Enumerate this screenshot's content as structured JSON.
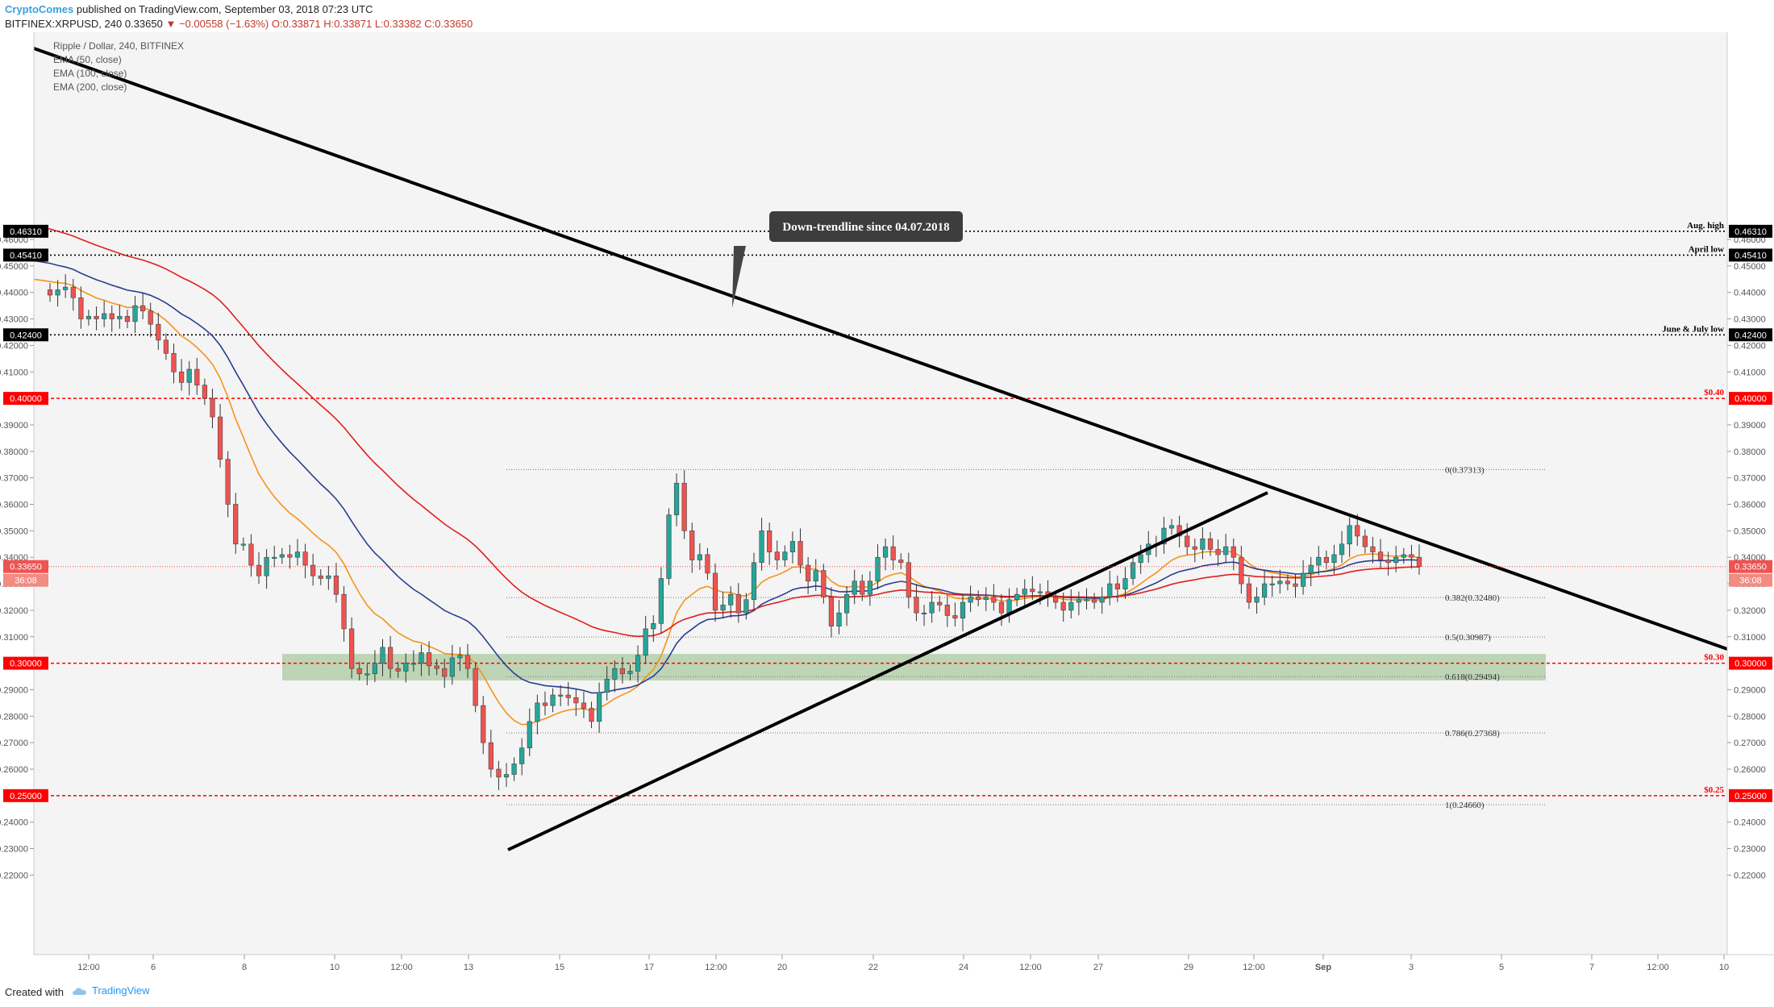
{
  "header": {
    "brand": "CryptoComes",
    "published": "published on TradingView.com, September 03, 2018 07:23 UTC",
    "symbol": "BITFINEX:XRPUSD, 240",
    "last": "0.33650",
    "change": "▼ −0.00558 (−1.63%)",
    "ohlc": "O:0.33871 H:0.33871 L:0.33382 C:0.33650"
  },
  "legend": [
    "Ripple / Dollar, 240, BITFINEX",
    "EMA (50, close)",
    "EMA (100, close)",
    "EMA (200, close)"
  ],
  "footer": {
    "created": "Created with",
    "tv": "TradingView"
  },
  "colors": {
    "up": "#26a69a",
    "down": "#ef5350",
    "ema50": "#f7931a",
    "ema100": "#2a3f8f",
    "ema200": "#e0201b",
    "zone": "#a5c79a",
    "level": "#ff0000"
  },
  "chart_data": {
    "type": "candlestick",
    "ylim": [
      0.22,
      0.465
    ],
    "y_ticks": [
      "0.46000",
      "0.45000",
      "0.44000",
      "0.43000",
      "0.42000",
      "0.41000",
      "0.39000",
      "0.38000",
      "0.37000",
      "0.36000",
      "0.35000",
      "0.34000",
      "0.33000",
      "0.32000",
      "0.31000",
      "0.29000",
      "0.28000",
      "0.27000",
      "0.26000",
      "0.24000",
      "0.23000",
      "0.22000"
    ],
    "x_ticks": [
      "12:00",
      "6",
      "8",
      "10",
      "12:00",
      "13",
      "15",
      "17",
      "12:00",
      "20",
      "22",
      "24",
      "12:00",
      "27",
      "29",
      "12:00",
      "Sep",
      "3",
      "5",
      "7",
      "12:00",
      "10"
    ],
    "price_badge": {
      "label": "0.33650",
      "countdown": "36:08"
    },
    "horizontal_levels": [
      {
        "label": "Aug. high",
        "badge": "0.46310",
        "style": "black-dotted"
      },
      {
        "label": "April low",
        "badge": "0.45410",
        "style": "black-dotted"
      },
      {
        "label": "June & July low",
        "badge": "0.42400",
        "style": "black-dotted"
      },
      {
        "label": "$0.40",
        "badge": "0.40000",
        "style": "red-dashed"
      },
      {
        "label": "$0.30",
        "badge": "0.30000",
        "style": "red-dashed"
      },
      {
        "label": "$0.25",
        "badge": "0.25000",
        "style": "red-dashed"
      }
    ],
    "fib_levels": [
      {
        "label": "0(0.37313)",
        "value": 0.37313
      },
      {
        "label": "0.382(0.32480)",
        "value": 0.3248
      },
      {
        "label": "0.5(0.30987)",
        "value": 0.30987
      },
      {
        "label": "0.618(0.29494)",
        "value": 0.29494
      },
      {
        "label": "0.786(0.27368)",
        "value": 0.27368
      },
      {
        "label": "1(0.24660)",
        "value": 0.2466
      }
    ],
    "support_zone": [
      0.2935,
      0.3035
    ],
    "annotation": "Down-trendline since 04.07.2018",
    "candles_close": [
      0.439,
      0.441,
      0.442,
      0.438,
      0.43,
      0.431,
      0.43,
      0.432,
      0.43,
      0.431,
      0.429,
      0.435,
      0.433,
      0.428,
      0.422,
      0.417,
      0.41,
      0.406,
      0.411,
      0.405,
      0.4,
      0.393,
      0.377,
      0.36,
      0.345,
      0.345,
      0.337,
      0.333,
      0.34,
      0.34,
      0.341,
      0.34,
      0.342,
      0.337,
      0.333,
      0.332,
      0.333,
      0.326,
      0.313,
      0.298,
      0.296,
      0.296,
      0.3,
      0.306,
      0.298,
      0.297,
      0.3,
      0.3,
      0.304,
      0.299,
      0.298,
      0.295,
      0.302,
      0.303,
      0.298,
      0.284,
      0.27,
      0.26,
      0.257,
      0.258,
      0.262,
      0.268,
      0.278,
      0.285,
      0.284,
      0.288,
      0.288,
      0.287,
      0.285,
      0.283,
      0.278,
      0.289,
      0.294,
      0.298,
      0.296,
      0.297,
      0.303,
      0.313,
      0.315,
      0.332,
      0.356,
      0.368,
      0.35,
      0.339,
      0.341,
      0.334,
      0.32,
      0.322,
      0.326,
      0.319,
      0.324,
      0.338,
      0.35,
      0.342,
      0.339,
      0.342,
      0.346,
      0.337,
      0.331,
      0.335,
      0.325,
      0.314,
      0.319,
      0.326,
      0.331,
      0.326,
      0.331,
      0.34,
      0.344,
      0.339,
      0.338,
      0.325,
      0.319,
      0.319,
      0.323,
      0.322,
      0.318,
      0.317,
      0.323,
      0.325,
      0.324,
      0.325,
      0.323,
      0.319,
      0.324,
      0.326,
      0.328,
      0.327,
      0.327,
      0.325,
      0.323,
      0.32,
      0.323,
      0.324,
      0.324,
      0.323,
      0.325,
      0.33,
      0.328,
      0.332,
      0.338,
      0.341,
      0.345,
      0.345,
      0.351,
      0.352,
      0.348,
      0.344,
      0.343,
      0.347,
      0.343,
      0.341,
      0.344,
      0.34,
      0.33,
      0.323,
      0.325,
      0.33,
      0.33,
      0.331,
      0.33,
      0.329,
      0.334,
      0.337,
      0.34,
      0.338,
      0.341,
      0.345,
      0.352,
      0.348,
      0.344,
      0.342,
      0.339,
      0.338,
      0.34,
      0.341,
      0.34,
      0.3365
    ]
  }
}
